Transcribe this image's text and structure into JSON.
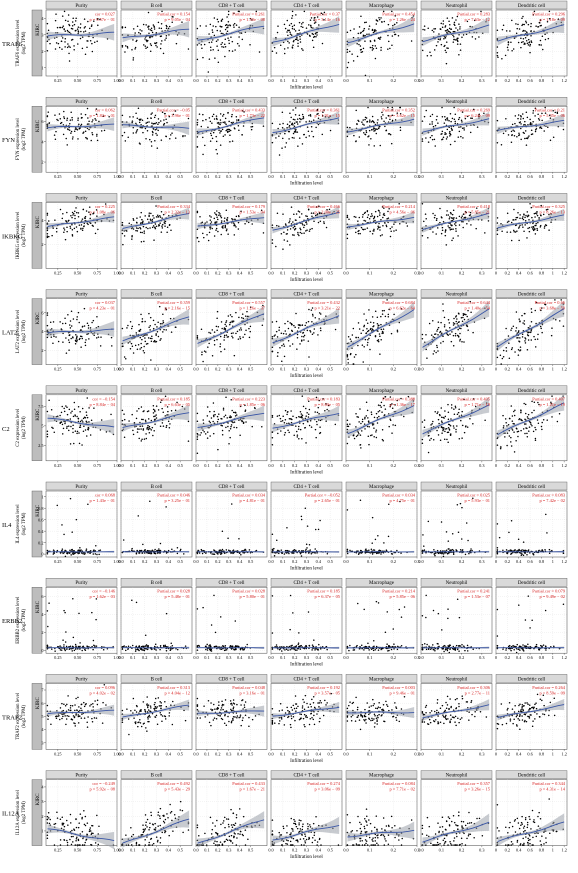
{
  "figure": {
    "cancer_label": "KIRC",
    "x_axis_label": "Infiltration level",
    "panel_titles": [
      "Purity",
      "B cell",
      "CD8 + T cell",
      "CD4 + T cell",
      "Macrophage",
      "Neutrophil",
      "Dendritic cell"
    ],
    "colors": {
      "points": "#000000",
      "fit_line": "#3a56a6",
      "ci_band": "#9aa0aa",
      "stats_text": "#d62020",
      "strip_bg": "#d9d9d9",
      "strip_border": "#555555",
      "gene_strip_bg": "#bdbdbd",
      "grid": "#c8c8c8"
    }
  },
  "chart_data": [
    {
      "type": "scatter",
      "gene": "TRAF6",
      "ylabel": [
        "TRAF6 expression level",
        "(log2 TPM)"
      ],
      "yticks": [
        1,
        2,
        3,
        4
      ],
      "ylim": [
        0.5,
        4.5
      ],
      "center": 3.0,
      "spread": 0.6,
      "panels": [
        {
          "title": "Purity",
          "stat_top": "cor = 0.027",
          "stat_bottom": "p = 5.57e − 01",
          "slope": 0.1
        },
        {
          "title": "B cell",
          "stat_top": "Partial.cor = 0.154",
          "stat_bottom": "p = 9.05e − 04",
          "slope": 0.3
        },
        {
          "title": "CD8 + T cell",
          "stat_top": "Partial.cor = 0.261",
          "stat_bottom": "p = 1.50e − 08",
          "slope": 0.5
        },
        {
          "title": "CD4 + T cell",
          "stat_top": "Partial.cor = 0.37",
          "stat_bottom": "p = 3.14e − 16",
          "slope": 0.6
        },
        {
          "title": "Macrophage",
          "stat_top": "Partial.cor = 0.454",
          "stat_bottom": "p = 1.26e − 24",
          "slope": 0.6
        },
        {
          "title": "Neutrophil",
          "stat_top": "Partial.cor = 0.283",
          "stat_bottom": "p = 7.63e − 12",
          "slope": 0.5
        },
        {
          "title": "Dendritic cell",
          "stat_top": "Partial.cor = 0.296",
          "stat_bottom": "p = 1.18e − 09",
          "slope": 0.5
        }
      ]
    },
    {
      "type": "scatter",
      "gene": "FYN",
      "ylabel": [
        "FYN expression level",
        "(log2 TPM)"
      ],
      "yticks": [
        2,
        4,
        6
      ],
      "ylim": [
        1.0,
        7.5
      ],
      "center": 5.5,
      "spread": 0.8,
      "panels": [
        {
          "title": "Purity",
          "stat_top": "cor = 0.062",
          "stat_bottom": "p = 1.82e − 01",
          "slope": 0.1
        },
        {
          "title": "B cell",
          "stat_top": "Partial.cor = −0.05",
          "stat_bottom": "p = 3.96e − 01",
          "slope": -0.1
        },
        {
          "title": "CD8 + T cell",
          "stat_top": "Partial.cor = 0.433",
          "stat_bottom": "p = 1.73e − 22",
          "slope": 0.5
        },
        {
          "title": "CD4 + T cell",
          "stat_top": "Partial.cor = 0.361",
          "stat_bottom": "p = 1.91e − 15",
          "slope": 0.5
        },
        {
          "title": "Macrophage",
          "stat_top": "Partial.cor = 0.352",
          "stat_bottom": "p = 3.62e − 15",
          "slope": 0.4
        },
        {
          "title": "Neutrophil",
          "stat_top": "Partial.cor = 0.269",
          "stat_bottom": "p = 6.24e − 09",
          "slope": 0.4
        },
        {
          "title": "Dendritic cell",
          "stat_top": "Partial.cor = 0.21",
          "stat_bottom": "p = 5.35e − 06",
          "slope": 0.3
        }
      ]
    },
    {
      "type": "scatter",
      "gene": "IKBKG",
      "ylabel": [
        "IKBKG expression level",
        "(log2 TPM)"
      ],
      "yticks": [
        2,
        4
      ],
      "ylim": [
        0.0,
        5.5
      ],
      "center": 3.8,
      "spread": 0.6,
      "panels": [
        {
          "title": "Purity",
          "stat_top": "cor = 0.225",
          "stat_bottom": "p = 1.08e − 06",
          "slope": 0.3
        },
        {
          "title": "B cell",
          "stat_top": "Partial.cor = 0.334",
          "stat_bottom": "p = 2.32e − 13",
          "slope": 0.5
        },
        {
          "title": "CD8 + T cell",
          "stat_top": "Partial.cor = 0.179",
          "stat_bottom": "p = 1.53e − 04",
          "slope": 0.3
        },
        {
          "title": "CD4 + T cell",
          "stat_top": "Partial.cor = 0.466",
          "stat_bottom": "p = 2.00e − 25",
          "slope": 0.6
        },
        {
          "title": "Macrophage",
          "stat_top": "Partial.cor = 0.214",
          "stat_bottom": "p = 4.56e − 06",
          "slope": 0.3
        },
        {
          "title": "Neutrophil",
          "stat_top": "Partial.cor = 0.418",
          "stat_bottom": "p = 5.85e − 21",
          "slope": 0.5
        },
        {
          "title": "Dendritic cell",
          "stat_top": "Partial.cor = 0.325",
          "stat_bottom": "p = 8.26e − 13",
          "slope": 0.4
        }
      ]
    },
    {
      "type": "scatter",
      "gene": "LAT2",
      "ylabel": [
        "LAT2 expression level",
        "(log2 TPM)"
      ],
      "yticks": [
        2,
        4,
        6
      ],
      "ylim": [
        0.5,
        7.5
      ],
      "center": 4.0,
      "spread": 1.0,
      "panels": [
        {
          "title": "Purity",
          "stat_top": "cor = 0.037",
          "stat_bottom": "p = 4.23e − 01",
          "slope": 0.1
        },
        {
          "title": "B cell",
          "stat_top": "Partial.cor = 0.359",
          "stat_bottom": "p = 2.16e − 15",
          "slope": 0.8
        },
        {
          "title": "CD8 + T cell",
          "stat_top": "Partial.cor = 0.557",
          "stat_bottom": "p = 1.26e − 37",
          "slope": 1.0
        },
        {
          "title": "CD4 + T cell",
          "stat_top": "Partial.cor = 0.432",
          "stat_bottom": "p = 3.21e − 22",
          "slope": 0.9
        },
        {
          "title": "Macrophage",
          "stat_top": "Partial.cor = 0.684",
          "stat_bottom": "p = 6.62e − 64",
          "slope": 1.2
        },
        {
          "title": "Neutrophil",
          "stat_top": "Partial.cor = 0.644",
          "stat_bottom": "p = 1.40e − 54",
          "slope": 1.2
        },
        {
          "title": "Dendritic cell",
          "stat_top": "Partial.cor = 0.66",
          "stat_bottom": "p = 3.68e − 59",
          "slope": 1.2
        }
      ]
    },
    {
      "type": "scatter",
      "gene": "C2",
      "ylabel": [
        "C2 expression level",
        "(log2 TPM)"
      ],
      "yticks": [
        2.5,
        5.0,
        7.5
      ],
      "ylim": [
        0.5,
        9.0
      ],
      "center": 5.5,
      "spread": 1.2,
      "panels": [
        {
          "title": "Purity",
          "stat_top": "cor = −0.154",
          "stat_bottom": "p = 8.84e − 04",
          "slope": -0.3
        },
        {
          "title": "B cell",
          "stat_top": "Partial.cor = 0.185",
          "stat_bottom": "p = 6.63e − 05",
          "slope": 0.5
        },
        {
          "title": "CD8 + T cell",
          "stat_top": "Partial.cor = 0.223",
          "stat_bottom": "p = 1.85e − 06",
          "slope": 0.5
        },
        {
          "title": "CD4 + T cell",
          "stat_top": "Partial.cor = 0.183",
          "stat_bottom": "p = 8.60e − 05",
          "slope": 0.5
        },
        {
          "title": "Macrophage",
          "stat_top": "Partial.cor = 0.388",
          "stat_bottom": "p = 1.36e − 17",
          "slope": 0.9
        },
        {
          "title": "Neutrophil",
          "stat_top": "Partial.cor = 0.405",
          "stat_bottom": "p = 1.71e − 19",
          "slope": 0.9
        },
        {
          "title": "Dendritic cell",
          "stat_top": "Partial.cor = 0.407",
          "stat_bottom": "p = 1.21e − 19",
          "slope": 1.0
        }
      ]
    },
    {
      "type": "scatter",
      "gene": "IL4",
      "ylabel": [
        "IL4 expression level",
        "(log2 TPM)"
      ],
      "yticks": [
        0.0,
        0.2,
        0.4,
        0.6,
        0.8,
        1.0
      ],
      "ylim": [
        -0.05,
        1.1
      ],
      "center": 0.04,
      "spread": 0.02,
      "panels": [
        {
          "title": "Purity",
          "stat_top": "cor = 0.068",
          "stat_bottom": "p = 1.43e − 01",
          "slope": 0.0
        },
        {
          "title": "B cell",
          "stat_top": "Partial.cor = 0.046",
          "stat_bottom": "p = 3.25e − 01",
          "slope": 0.0
        },
        {
          "title": "CD8 + T cell",
          "stat_top": "Partial.cor = 0.034",
          "stat_bottom": "p = 4.81e − 01",
          "slope": 0.0
        },
        {
          "title": "CD4 + T cell",
          "stat_top": "Partial.cor = −0.052",
          "stat_bottom": "p = 2.65e − 01",
          "slope": 0.0
        },
        {
          "title": "Macrophage",
          "stat_top": "Partial.cor = 0.034",
          "stat_bottom": "p = 4.75e − 01",
          "slope": 0.0
        },
        {
          "title": "Neutrophil",
          "stat_top": "Partial.cor = 0.025",
          "stat_bottom": "p = 5.93e − 01",
          "slope": 0.0
        },
        {
          "title": "Dendritic cell",
          "stat_top": "Partial.cor = 0.083",
          "stat_bottom": "p = 7.42e − 02",
          "slope": 0.0
        }
      ]
    },
    {
      "type": "scatter",
      "gene": "ERBB2",
      "ylabel": [
        "ERBB2 expression level",
        "(log2 TPM)"
      ],
      "yticks": [
        0,
        2,
        4,
        6
      ],
      "ylim": [
        -0.3,
        7.0
      ],
      "center": 0.3,
      "spread": 0.15,
      "panels": [
        {
          "title": "Purity",
          "stat_top": "cor = −0.146",
          "stat_bottom": "p = 1.62e − 03",
          "slope": 0.0
        },
        {
          "title": "B cell",
          "stat_top": "Partial.cor = 0.028",
          "stat_bottom": "p = 5.48e − 01",
          "slope": 0.0
        },
        {
          "title": "CD8 + T cell",
          "stat_top": "Partial.cor = 0.028",
          "stat_bottom": "p = 5.80e − 01",
          "slope": 0.0
        },
        {
          "title": "CD4 + T cell",
          "stat_top": "Partial.cor = 0.185",
          "stat_bottom": "p = 6.37e − 05",
          "slope": 0.0
        },
        {
          "title": "Macrophage",
          "stat_top": "Partial.cor = 0.214",
          "stat_bottom": "p = 5.85e − 06",
          "slope": 0.0
        },
        {
          "title": "Neutrophil",
          "stat_top": "Partial.cor = 0.241",
          "stat_bottom": "p = 1.53e − 07",
          "slope": 0.0
        },
        {
          "title": "Dendritic cell",
          "stat_top": "Partial.cor = 0.079",
          "stat_bottom": "p = 9.49e − 02",
          "slope": 0.0
        }
      ]
    },
    {
      "type": "scatter",
      "gene": "TRAF2",
      "ylabel": [
        "TRAF2 expression level",
        "(log2 TPM)"
      ],
      "yticks": [
        3,
        4,
        5,
        6,
        7
      ],
      "ylim": [
        2.5,
        7.5
      ],
      "center": 5.3,
      "spread": 0.5,
      "panels": [
        {
          "title": "Purity",
          "stat_top": "cor = 0.096",
          "stat_bottom": "p = 4.02e − 02",
          "slope": 0.1
        },
        {
          "title": "B cell",
          "stat_top": "Partial.cor = 0.313",
          "stat_bottom": "p = 4.04e − 12",
          "slope": 0.4
        },
        {
          "title": "CD8 + T cell",
          "stat_top": "Partial.cor = 0.048",
          "stat_bottom": "p = 3.16e − 01",
          "slope": 0.1
        },
        {
          "title": "CD4 + T cell",
          "stat_top": "Partial.cor = 0.192",
          "stat_bottom": "p = 3.57e − 05",
          "slope": 0.3
        },
        {
          "title": "Macrophage",
          "stat_top": "Partial.cor = 0.003",
          "stat_bottom": "p = 9.46e − 01",
          "slope": 0.0
        },
        {
          "title": "Neutrophil",
          "stat_top": "Partial.cor = 0.306",
          "stat_bottom": "p = 2.77e − 11",
          "slope": 0.4
        },
        {
          "title": "Dendritic cell",
          "stat_top": "Partial.cor = 0.264",
          "stat_bottom": "p = 8.59e − 09",
          "slope": 0.4
        }
      ]
    },
    {
      "type": "scatter",
      "gene": "IL12A",
      "ylabel": [
        "IL12A expression level",
        "(log2 TPM)"
      ],
      "yticks": [
        1,
        2,
        3,
        4
      ],
      "ylim": [
        0.0,
        4.5
      ],
      "center": 0.8,
      "spread": 0.7,
      "panels": [
        {
          "title": "Purity",
          "stat_top": "cor = −0.249",
          "stat_bottom": "p = 5.92e − 08",
          "slope": -0.4
        },
        {
          "title": "B cell",
          "stat_top": "Partial.cor = 0.492",
          "stat_bottom": "p = 5.43e − 29",
          "slope": 0.8
        },
        {
          "title": "CD8 + T cell",
          "stat_top": "Partial.cor = 0.433",
          "stat_bottom": "p = 1.67e − 21",
          "slope": 0.8
        },
        {
          "title": "CD4 + T cell",
          "stat_top": "Partial.cor = 0.274",
          "stat_bottom": "p = 3.06e − 09",
          "slope": 0.5
        },
        {
          "title": "Macrophage",
          "stat_top": "Partial.cor = 0.084",
          "stat_bottom": "p = 7.71e − 02",
          "slope": 0.2
        },
        {
          "title": "Neutrophil",
          "stat_top": "Partial.cor = 0.357",
          "stat_bottom": "p = 3.26e − 15",
          "slope": 0.6
        },
        {
          "title": "Dendritic cell",
          "stat_top": "Partial.cor = 0.344",
          "stat_bottom": "p = 4.31e − 14",
          "slope": 0.6
        }
      ]
    }
  ],
  "x_axes": [
    {
      "xlim": [
        0.1,
        1.0
      ],
      "ticks": [
        "0.25",
        "0.50",
        "0.75",
        "1.00"
      ],
      "values": [
        0.25,
        0.5,
        0.75,
        1.0
      ]
    },
    {
      "xlim": [
        0.0,
        0.6
      ],
      "ticks": [
        "0.0",
        "0.1",
        "0.2",
        "0.3",
        "0.4",
        "0.5"
      ],
      "values": [
        0,
        0.1,
        0.2,
        0.3,
        0.4,
        0.5
      ]
    },
    {
      "xlim": [
        0.0,
        0.65
      ],
      "ticks": [
        "0.0",
        "0.1",
        "0.2",
        "0.3",
        "0.4",
        "0.5"
      ],
      "values": [
        0,
        0.1,
        0.2,
        0.3,
        0.4,
        0.5
      ]
    },
    {
      "xlim": [
        0.0,
        0.6
      ],
      "ticks": [
        "0.0",
        "0.1",
        "0.2",
        "0.3",
        "0.4",
        "0.5"
      ],
      "values": [
        0,
        0.1,
        0.2,
        0.3,
        0.4,
        0.5
      ]
    },
    {
      "xlim": [
        0.0,
        0.3
      ],
      "ticks": [
        "0.0",
        "0.1",
        "0.2",
        "0.3"
      ],
      "values": [
        0,
        0.1,
        0.2,
        0.3
      ]
    },
    {
      "xlim": [
        0.0,
        0.35
      ],
      "ticks": [
        "0.0",
        "0.1",
        "0.2",
        "0.3"
      ],
      "values": [
        0,
        0.1,
        0.2,
        0.3
      ]
    },
    {
      "xlim": [
        0.0,
        1.25
      ],
      "ticks": [
        "0",
        "0.2",
        "0.4",
        "0.6",
        "0.8",
        "1",
        "1.2"
      ],
      "values": [
        0,
        0.2,
        0.4,
        0.6,
        0.8,
        1.0,
        1.2
      ]
    }
  ]
}
